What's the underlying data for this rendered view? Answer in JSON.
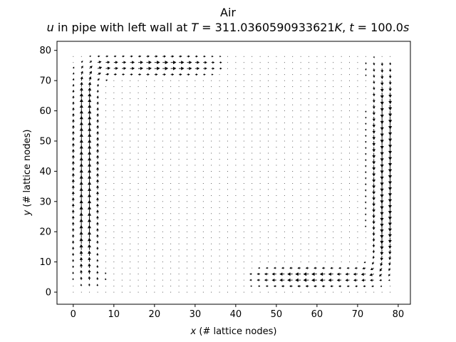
{
  "chart_data": {
    "type": "quiver",
    "title": "Air",
    "subtitle_parts": {
      "var": "u",
      "text1": " in pipe with left wall at ",
      "T_sym": "T",
      "T_val": " = 311.0360590933621",
      "K_sym": "K",
      "sep": ", ",
      "t_sym": "t",
      "t_val": " = 100.0",
      "s_sym": "s"
    },
    "xlabel_var": "x",
    "xlabel_text": " (# lattice nodes)",
    "ylabel_var": "y",
    "ylabel_text": " (# lattice nodes)",
    "xlim": [
      -4,
      83
    ],
    "ylim": [
      -4,
      83
    ],
    "x_ticks": [
      0,
      10,
      20,
      30,
      40,
      50,
      60,
      70,
      80
    ],
    "y_ticks": [
      0,
      10,
      20,
      30,
      40,
      50,
      60,
      70,
      80
    ],
    "grid": {
      "nx": 80,
      "ny": 80,
      "step": 2
    },
    "flow": "clockwise circulation: upward jet along the left wall, rightward flow along the top near y~75, downward jet along the right wall, leftward flow along the bottom near y~5, near-zero velocity in the interior"
  }
}
